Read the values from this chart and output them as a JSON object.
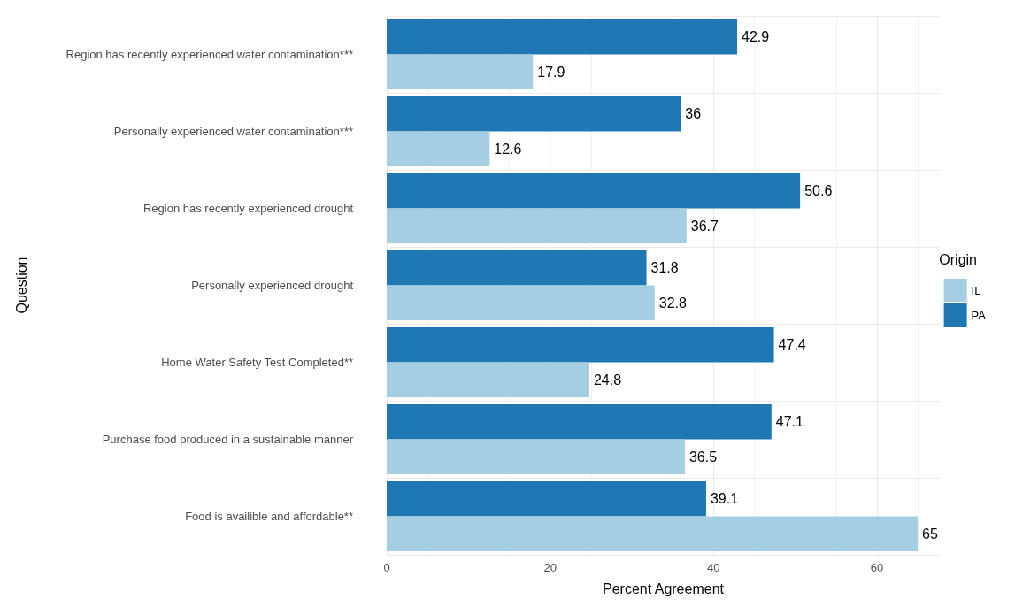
{
  "chart_data": {
    "type": "bar",
    "orientation": "horizontal",
    "xlabel": "Percent Agreement",
    "ylabel": "Question",
    "legend_title": "Origin",
    "categories": [
      "Region has recently experienced water contamination***",
      "Personally experienced water contamination***",
      "Region has recently experienced drought",
      "Personally experienced drought",
      "Home Water Safety Test Completed**",
      "Purchase food produced in a sustainable manner",
      "Food is availible and affordable**"
    ],
    "series": [
      {
        "name": "IL",
        "color": "#a6cee3",
        "values": [
          17.9,
          12.6,
          36.7,
          32.8,
          24.8,
          36.5,
          65
        ]
      },
      {
        "name": "PA",
        "color": "#1f78b4",
        "values": [
          42.9,
          36,
          50.6,
          31.8,
          47.4,
          47.1,
          39.1
        ]
      }
    ],
    "xlim": [
      0,
      67.7
    ],
    "xticks": [
      0,
      20,
      40,
      60
    ],
    "grid": true,
    "legend": "right",
    "data_labels": true
  }
}
